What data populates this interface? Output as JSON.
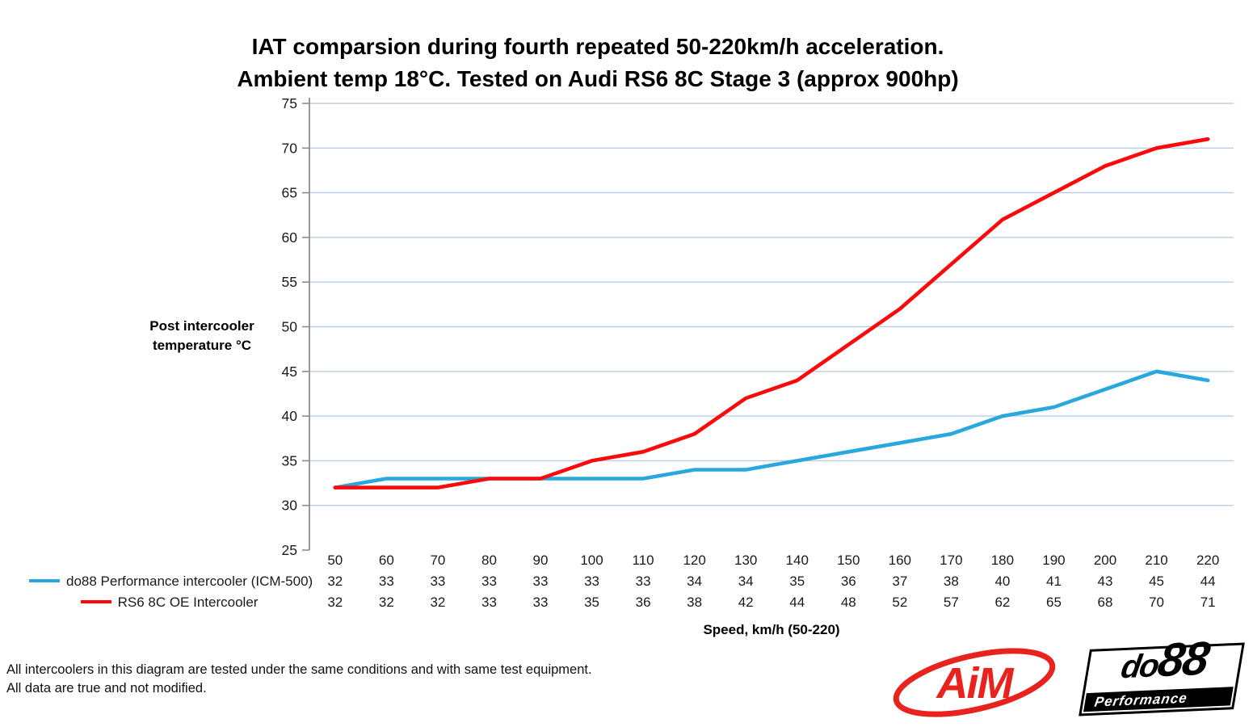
{
  "title": {
    "line1": "IAT comparsion during fourth repeated 50-220km/h acceleration.",
    "line2": "Ambient temp 18°C. Tested on Audi RS6 8C Stage 3 (approx 900hp)"
  },
  "chart_data": {
    "type": "line",
    "x": [
      50,
      60,
      70,
      80,
      90,
      100,
      110,
      120,
      130,
      140,
      150,
      160,
      170,
      180,
      190,
      200,
      210,
      220
    ],
    "series": [
      {
        "name": "do88 Performance intercooler (ICM-500)",
        "color": "#29A8E0",
        "values": [
          32,
          33,
          33,
          33,
          33,
          33,
          33,
          34,
          34,
          35,
          36,
          37,
          38,
          40,
          41,
          43,
          45,
          44
        ]
      },
      {
        "name": "RS6 8C OE Intercooler",
        "color": "#FA0A0A",
        "values": [
          32,
          32,
          32,
          33,
          33,
          35,
          36,
          38,
          42,
          44,
          48,
          52,
          57,
          62,
          65,
          68,
          70,
          71
        ]
      }
    ],
    "ylabel": [
      "Post intercooler",
      "temperature °C"
    ],
    "xlabel": "Speed, km/h (50-220)",
    "ylim": [
      25,
      75
    ],
    "ytick_step": 5,
    "grid": true,
    "legend_position": "table-left",
    "gridline_color": "#BBCDE5",
    "axis_color": "#8C8C8C",
    "table_border_color": "#808080"
  },
  "footer": {
    "line1": "All intercoolers in this diagram are tested under the same conditions and with same test equipment.",
    "line2": "All data are true and not modified."
  },
  "logos": {
    "aim": {
      "text": "AiM",
      "color": "#E8231E"
    },
    "do88": {
      "text_do": "do",
      "text_88": "88",
      "subtext": "Performance",
      "color": "#000000"
    }
  }
}
